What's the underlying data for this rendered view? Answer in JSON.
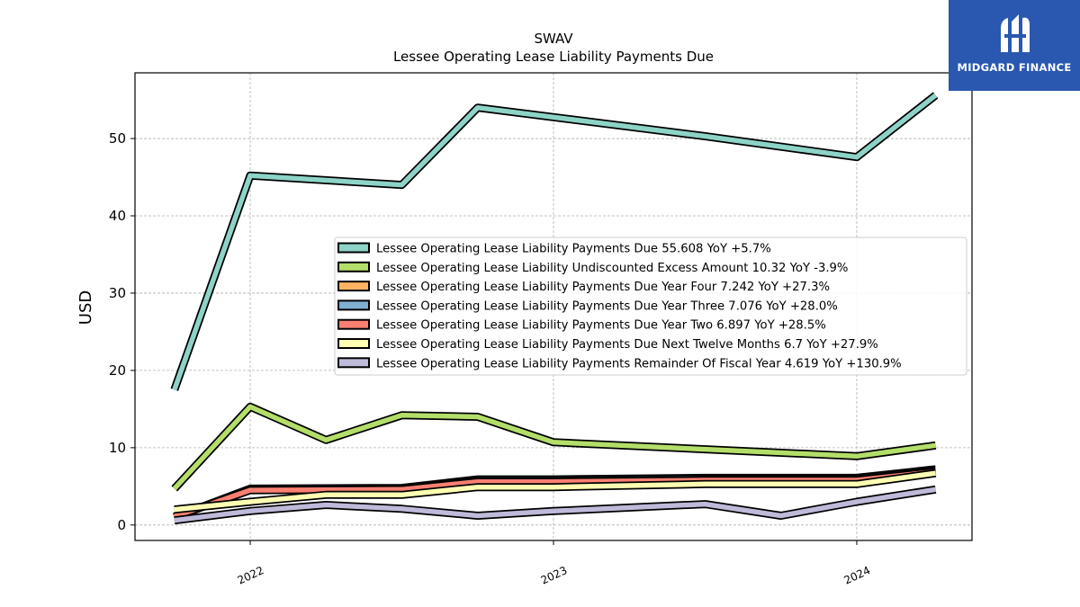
{
  "logo": {
    "text": "MIDGARD FINANCE",
    "icon": "midgard-logo-icon",
    "background": "#2a58b0"
  },
  "chart_data": {
    "type": "line",
    "title": "SWAV",
    "subtitle": "Lessee Operating Lease Liability Payments Due",
    "xlabel": "",
    "ylabel": "USD",
    "ylim": [
      -2,
      58.5
    ],
    "xlim": [
      2021.62,
      2024.38
    ],
    "yticks": [
      0,
      10,
      20,
      30,
      40,
      50
    ],
    "xticks": [
      {
        "value": 2022.0,
        "label": "2022"
      },
      {
        "value": 2023.0,
        "label": "2023"
      },
      {
        "value": 2024.0,
        "label": "2024"
      }
    ],
    "grid": true,
    "legend_position": "center-right",
    "series": [
      {
        "name": "Lessee Operating Lease Liability Payments Due",
        "legend": "Lessee Operating Lease Liability Payments Due  55.608 YoY +5.7%",
        "color": "#8dd3c7",
        "points": [
          [
            2021.75,
            17.5
          ],
          [
            2022.0,
            45.2
          ],
          [
            2022.5,
            44.0
          ],
          [
            2022.75,
            54.0
          ],
          [
            2023.5,
            50.3
          ],
          [
            2024.0,
            47.6
          ],
          [
            2024.26,
            55.6
          ]
        ]
      },
      {
        "name": "Lessee Operating Lease Liability Undiscounted Excess Amount",
        "legend": "Lessee Operating Lease Liability Undiscounted Excess Amount  10.32 YoY -3.9%",
        "color": "#b3de69",
        "points": [
          [
            2021.75,
            4.7
          ],
          [
            2022.0,
            15.3
          ],
          [
            2022.25,
            11.0
          ],
          [
            2022.5,
            14.2
          ],
          [
            2022.75,
            14.0
          ],
          [
            2023.0,
            10.7
          ],
          [
            2023.5,
            9.8
          ],
          [
            2024.0,
            8.9
          ],
          [
            2024.26,
            10.3
          ]
        ]
      },
      {
        "name": "Lessee Operating Lease Liability Payments Due Year Four",
        "legend": "Lessee Operating Lease Liability Payments Due Year Four  7.242 YoY +27.3%",
        "color": "#fdb462",
        "points": [
          [
            2021.75,
            1.0
          ],
          [
            2022.0,
            4.7
          ],
          [
            2022.5,
            4.8
          ],
          [
            2022.75,
            5.9
          ],
          [
            2023.0,
            5.9
          ],
          [
            2023.5,
            6.1
          ],
          [
            2024.0,
            6.1
          ],
          [
            2024.26,
            7.2
          ]
        ]
      },
      {
        "name": "Lessee Operating Lease Liability Payments Due Year Three",
        "legend": "Lessee Operating Lease Liability Payments Due Year Three  7.076 YoY +28.0%",
        "color": "#80b1d3",
        "points": [
          [
            2021.75,
            1.0
          ],
          [
            2022.0,
            4.6
          ],
          [
            2022.5,
            4.7
          ],
          [
            2022.75,
            5.8
          ],
          [
            2023.0,
            5.8
          ],
          [
            2023.5,
            6.0
          ],
          [
            2024.0,
            6.0
          ],
          [
            2024.26,
            7.1
          ]
        ]
      },
      {
        "name": "Lessee Operating Lease Liability Payments Due Year Two",
        "legend": "Lessee Operating Lease Liability Payments Due Year Two  6.897 YoY +28.5%",
        "color": "#fb8072",
        "points": [
          [
            2021.75,
            1.1
          ],
          [
            2022.0,
            4.5
          ],
          [
            2022.5,
            4.6
          ],
          [
            2022.75,
            5.6
          ],
          [
            2023.0,
            5.6
          ],
          [
            2023.5,
            5.8
          ],
          [
            2024.0,
            5.8
          ],
          [
            2024.26,
            6.9
          ]
        ]
      },
      {
        "name": "Lessee Operating Lease Liability Payments Due Next Twelve Months",
        "legend": "Lessee Operating Lease Liability Payments Due Next Twelve Months  6.7 YoY +27.9%",
        "color": "#ffffb3",
        "points": [
          [
            2021.75,
            2.0
          ],
          [
            2022.0,
            3.0
          ],
          [
            2022.25,
            3.9
          ],
          [
            2022.5,
            3.9
          ],
          [
            2022.75,
            4.9
          ],
          [
            2023.0,
            4.9
          ],
          [
            2023.5,
            5.3
          ],
          [
            2024.0,
            5.3
          ],
          [
            2024.26,
            6.7
          ]
        ]
      },
      {
        "name": "Lessee Operating Lease Liability Payments Remainder Of Fiscal Year",
        "legend": "Lessee Operating Lease Liability Payments Remainder Of Fiscal Year  4.619 YoY +130.9%",
        "color": "#bebada",
        "points": [
          [
            2021.75,
            0.6
          ],
          [
            2022.0,
            1.8
          ],
          [
            2022.25,
            2.6
          ],
          [
            2022.5,
            2.1
          ],
          [
            2022.75,
            1.2
          ],
          [
            2023.0,
            1.8
          ],
          [
            2023.5,
            2.7
          ],
          [
            2023.75,
            1.2
          ],
          [
            2024.0,
            3.0
          ],
          [
            2024.26,
            4.6
          ]
        ]
      }
    ]
  }
}
